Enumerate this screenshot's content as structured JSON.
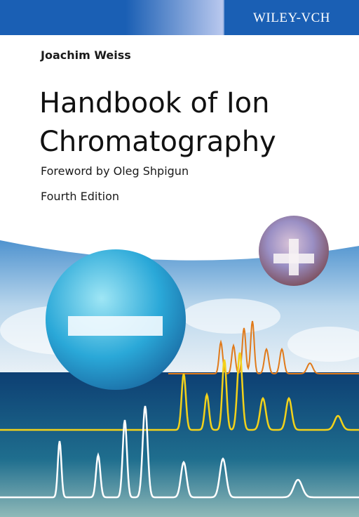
{
  "publisher": "WILEY-VCH",
  "author": "Joachim Weiss",
  "title": [
    "Handbook of Ion",
    "Chromatography"
  ],
  "foreword": "Foreword by Oleg Shpigun",
  "edition": "Fourth Edition"
}
